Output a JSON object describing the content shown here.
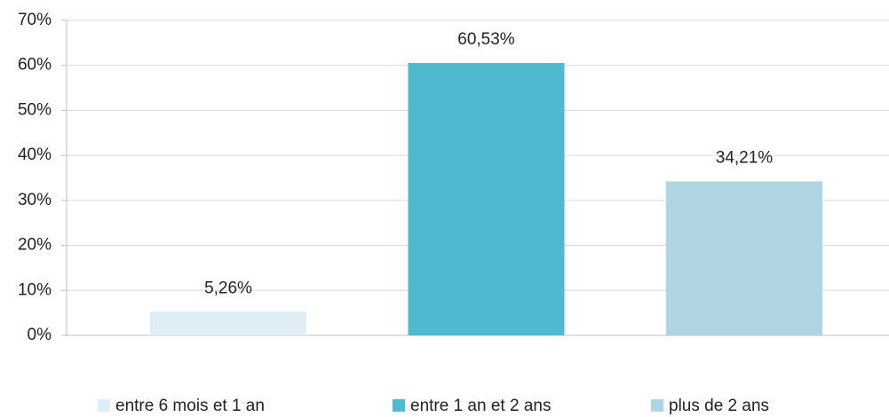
{
  "chart_data": {
    "type": "bar",
    "categories": [
      "entre 6 mois et 1 an",
      "entre 1 an et 2 ans",
      "plus de 2 ans"
    ],
    "values": [
      5.26,
      60.53,
      34.21
    ],
    "value_labels": [
      "5,26%",
      "60,53%",
      "34,21%"
    ],
    "colors": [
      "#dfeef5",
      "#4fb9cf",
      "#afd4e2"
    ],
    "ylim": [
      0,
      70
    ],
    "yticks": [
      {
        "value": 0,
        "label": "0%"
      },
      {
        "value": 10,
        "label": "10%"
      },
      {
        "value": 20,
        "label": "20%"
      },
      {
        "value": 30,
        "label": "30%"
      },
      {
        "value": 40,
        "label": "40%"
      },
      {
        "value": 50,
        "label": "50%"
      },
      {
        "value": 60,
        "label": "60%"
      },
      {
        "value": 70,
        "label": "70%"
      }
    ],
    "grid": true,
    "legend": "bottom"
  }
}
